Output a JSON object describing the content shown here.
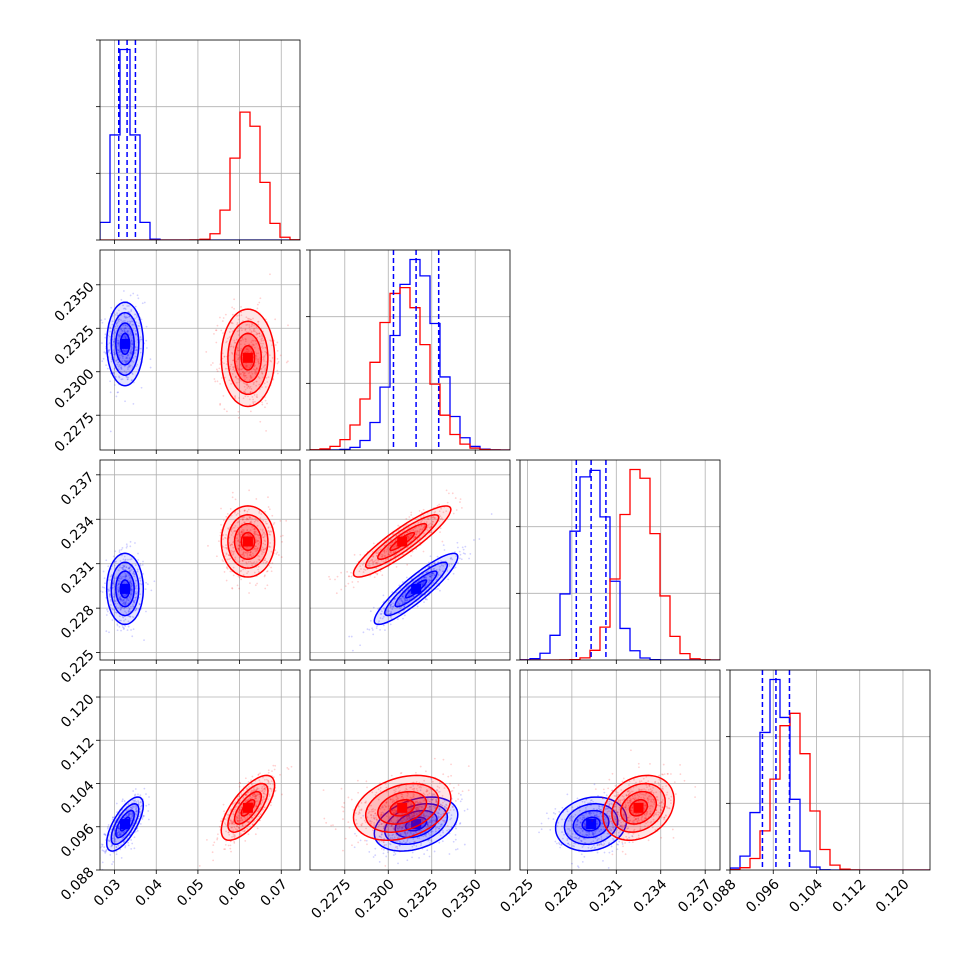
{
  "chart_data": {
    "type": "corner",
    "parameters": 4,
    "series": [
      {
        "color": "#0000ff",
        "means": [
          0.0325,
          0.2316,
          0.2293,
          0.0965
        ],
        "sds": [
          0.0022,
          0.0012,
          0.0012,
          0.0025
        ],
        "correlations": {
          "1-0": 0.0,
          "2-0": 0.0,
          "2-1": 0.9,
          "3-0": 0.7,
          "3-1": 0.35,
          "3-2": 0.15
        },
        "quantiles": [
          [
            0.031,
            0.033,
            0.035
          ],
          [
            0.2303,
            0.2316,
            0.2329
          ],
          [
            0.2283,
            0.2293,
            0.2303
          ],
          [
            0.094,
            0.0965,
            0.099
          ]
        ]
      },
      {
        "color": "#ff0000",
        "means": [
          0.062,
          0.2308,
          0.2325,
          0.0995
        ],
        "sds": [
          0.0032,
          0.0014,
          0.0012,
          0.003
        ],
        "correlations": {
          "1-0": 0.0,
          "2-0": 0.0,
          "2-1": 0.9,
          "3-0": 0.7,
          "3-1": 0.3,
          "3-2": 0.25
        },
        "quantiles": []
      }
    ],
    "ranges": [
      [
        0.0265,
        0.0745
      ],
      [
        0.2255,
        0.237
      ],
      [
        0.2245,
        0.238
      ],
      [
        0.088,
        0.125
      ]
    ],
    "ticks": [
      [
        0.03,
        0.04,
        0.05,
        0.06,
        0.07
      ],
      [
        0.2275,
        0.23,
        0.2325,
        0.235
      ],
      [
        0.225,
        0.228,
        0.231,
        0.234,
        0.237
      ],
      [
        0.088,
        0.096,
        0.104,
        0.112,
        0.12
      ]
    ],
    "tick_labels": [
      [
        "0.03",
        "0.04",
        "0.05",
        "0.06",
        "0.07"
      ],
      [
        "0.2275",
        "0.2300",
        "0.2325",
        "0.2350"
      ],
      [
        "0.225",
        "0.228",
        "0.231",
        "0.234",
        "0.237"
      ],
      [
        "0.088",
        "0.096",
        "0.104",
        "0.112",
        "0.120"
      ]
    ],
    "grid": true,
    "contour_levels_sigma": [
      0.5,
      1.0,
      1.5,
      2.0
    ],
    "histogram_bins": 20
  }
}
